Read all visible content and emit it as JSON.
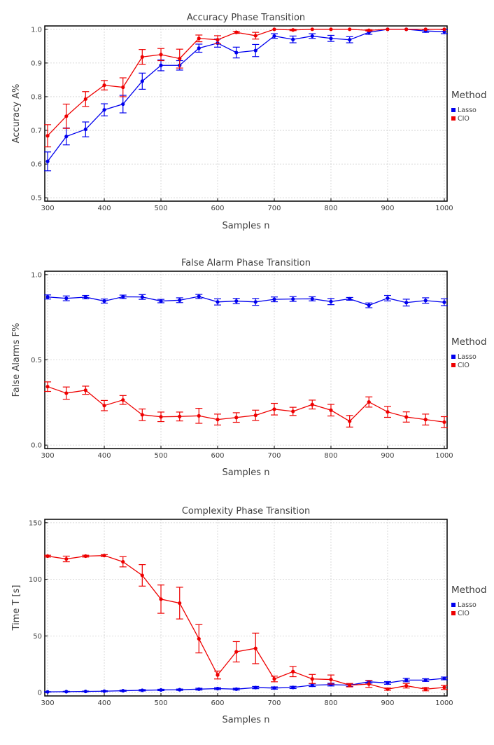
{
  "colors": {
    "lasso": "#0000ee",
    "cio": "#ee0000",
    "grid": "#d0d0d0",
    "axis": "#000000",
    "text": "#404040"
  },
  "chart_data": [
    {
      "type": "line",
      "title": "Accuracy Phase Transition",
      "xlabel": "Samples n",
      "ylabel": "Accuracy A%",
      "xlim": [
        295,
        1005
      ],
      "ylim": [
        0.49,
        1.01
      ],
      "xticks": [
        300,
        400,
        500,
        600,
        700,
        800,
        900,
        1000
      ],
      "yticks": [
        0.5,
        0.6,
        0.7,
        0.8,
        0.9,
        1.0
      ],
      "ytick_labels": [
        "0.5",
        "0.6",
        "0.7",
        "0.8",
        "0.9",
        "1.0"
      ],
      "legend_title": "Method",
      "legend_position": "right",
      "x": [
        300,
        333,
        367,
        400,
        433,
        467,
        500,
        533,
        567,
        600,
        633,
        667,
        700,
        733,
        767,
        800,
        833,
        867,
        900,
        933,
        967,
        1000
      ],
      "series": [
        {
          "name": "Lasso",
          "color_key": "lasso",
          "values": [
            0.608,
            0.682,
            0.703,
            0.761,
            0.778,
            0.846,
            0.893,
            0.893,
            0.944,
            0.959,
            0.931,
            0.937,
            0.98,
            0.97,
            0.98,
            0.973,
            0.969,
            0.991,
            1.0,
            1.0,
            0.995,
            0.993
          ],
          "errors": [
            0.028,
            0.025,
            0.022,
            0.018,
            0.026,
            0.024,
            0.016,
            0.014,
            0.012,
            0.012,
            0.016,
            0.018,
            0.007,
            0.01,
            0.007,
            0.009,
            0.009,
            0.006,
            0.0,
            0.0,
            0.004,
            0.006
          ]
        },
        {
          "name": "CIO",
          "color_key": "cio",
          "values": [
            0.684,
            0.742,
            0.793,
            0.834,
            0.828,
            0.918,
            0.925,
            0.913,
            0.973,
            0.969,
            0.991,
            0.981,
            1.0,
            0.998,
            1.0,
            1.0,
            1.0,
            0.997,
            1.0,
            1.0,
            1.0,
            1.0
          ],
          "errors": [
            0.033,
            0.036,
            0.022,
            0.014,
            0.028,
            0.022,
            0.018,
            0.028,
            0.01,
            0.012,
            0.003,
            0.01,
            0.0,
            0.002,
            0.0,
            0.0,
            0.0,
            0.002,
            0.0,
            0.0,
            0.0,
            0.0
          ]
        }
      ]
    },
    {
      "type": "line",
      "title": "False Alarm Phase Transition",
      "xlabel": "Samples n",
      "ylabel": "False Alarms F%",
      "xlim": [
        295,
        1005
      ],
      "ylim": [
        -0.02,
        1.02
      ],
      "xticks": [
        300,
        400,
        500,
        600,
        700,
        800,
        900,
        1000
      ],
      "yticks": [
        0.0,
        0.5,
        1.0
      ],
      "ytick_labels": [
        "0.0",
        "0.5",
        "1.0"
      ],
      "legend_title": "Method",
      "legend_position": "right",
      "x": [
        300,
        333,
        367,
        400,
        433,
        467,
        500,
        533,
        567,
        600,
        633,
        667,
        700,
        733,
        767,
        800,
        833,
        867,
        900,
        933,
        967,
        1000
      ],
      "series": [
        {
          "name": "Lasso",
          "color_key": "lasso",
          "values": [
            0.869,
            0.861,
            0.868,
            0.845,
            0.87,
            0.869,
            0.845,
            0.85,
            0.872,
            0.84,
            0.845,
            0.84,
            0.855,
            0.857,
            0.858,
            0.842,
            0.858,
            0.82,
            0.862,
            0.836,
            0.848,
            0.838
          ],
          "errors": [
            0.012,
            0.014,
            0.01,
            0.012,
            0.01,
            0.014,
            0.01,
            0.014,
            0.012,
            0.018,
            0.016,
            0.02,
            0.014,
            0.014,
            0.012,
            0.018,
            0.008,
            0.014,
            0.016,
            0.02,
            0.016,
            0.02
          ]
        },
        {
          "name": "CIO",
          "color_key": "cio",
          "values": [
            0.343,
            0.305,
            0.322,
            0.232,
            0.265,
            0.178,
            0.166,
            0.168,
            0.172,
            0.15,
            0.162,
            0.175,
            0.211,
            0.198,
            0.238,
            0.205,
            0.14,
            0.253,
            0.195,
            0.165,
            0.15,
            0.135
          ],
          "errors": [
            0.028,
            0.036,
            0.024,
            0.03,
            0.026,
            0.034,
            0.028,
            0.026,
            0.044,
            0.032,
            0.028,
            0.03,
            0.034,
            0.024,
            0.026,
            0.034,
            0.034,
            0.03,
            0.032,
            0.03,
            0.032,
            0.032
          ]
        }
      ]
    },
    {
      "type": "line",
      "title": "Complexity Phase Transition",
      "xlabel": "Samples n",
      "ylabel": "Time T [s]",
      "xlim": [
        295,
        1005
      ],
      "ylim": [
        -3,
        153
      ],
      "xticks": [
        300,
        400,
        500,
        600,
        700,
        800,
        900,
        1000
      ],
      "yticks": [
        0,
        50,
        100,
        150
      ],
      "ytick_labels": [
        "0",
        "50",
        "100",
        "150"
      ],
      "legend_title": "Method",
      "legend_position": "right",
      "x": [
        300,
        333,
        367,
        400,
        433,
        467,
        500,
        533,
        567,
        600,
        633,
        667,
        700,
        733,
        767,
        800,
        833,
        867,
        900,
        933,
        967,
        1000
      ],
      "series": [
        {
          "name": "Lasso",
          "color_key": "lasso",
          "values": [
            0.6,
            0.8,
            1.0,
            1.2,
            1.6,
            2.0,
            2.3,
            2.5,
            3.0,
            3.5,
            3.0,
            4.4,
            4.0,
            4.5,
            6.5,
            7.0,
            6.5,
            9.5,
            8.5,
            11.0,
            11.0,
            12.5
          ],
          "errors": [
            0.2,
            0.3,
            0.3,
            0.4,
            0.5,
            0.6,
            0.6,
            0.6,
            0.8,
            0.8,
            0.8,
            1.0,
            1.0,
            1.0,
            1.2,
            1.2,
            1.2,
            1.2,
            1.2,
            1.5,
            1.2,
            1.2
          ]
        },
        {
          "name": "CIO",
          "color_key": "cio",
          "values": [
            120.5,
            118.0,
            120.5,
            121.0,
            115.5,
            103.5,
            82.5,
            79.0,
            47.5,
            15.5,
            36.0,
            39.0,
            12.0,
            18.5,
            12.0,
            11.5,
            6.5,
            7.5,
            3.0,
            6.0,
            3.0,
            4.5
          ],
          "errors": [
            0.8,
            2.5,
            0.8,
            0.8,
            4.5,
            9.5,
            12.5,
            14.0,
            12.5,
            3.5,
            9.0,
            13.5,
            2.5,
            4.5,
            4.0,
            4.0,
            1.5,
            3.0,
            1.0,
            2.0,
            1.5,
            1.8
          ]
        }
      ]
    }
  ]
}
